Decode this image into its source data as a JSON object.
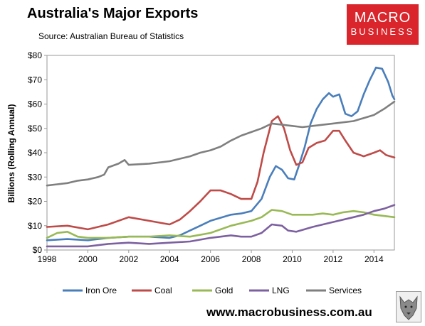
{
  "header": {
    "title": "Australia's Major Exports",
    "subtitle": "Source: Australian Bureau of Statistics"
  },
  "logo": {
    "line1": "MACRO",
    "line2": "BUSINESS",
    "color": "#d9252b"
  },
  "footer": {
    "url": "www.macrobusiness.com.au"
  },
  "chart_data": {
    "type": "line",
    "title": "Australia's Major Exports",
    "subtitle": "Source: Australian Bureau of Statistics",
    "ylabel": "Billions (Rolling Annual)",
    "xlabel": "",
    "xlim": [
      1998,
      2015
    ],
    "ylim": [
      0,
      80
    ],
    "y_ticks": [
      0,
      10,
      20,
      30,
      40,
      50,
      60,
      70,
      80
    ],
    "y_tick_labels": [
      "$0",
      "$10",
      "$20",
      "$30",
      "$40",
      "$50",
      "$60",
      "$70",
      "$80"
    ],
    "x_ticks": [
      1998,
      2000,
      2002,
      2004,
      2006,
      2008,
      2010,
      2012,
      2014
    ],
    "x_tick_labels": [
      "1998",
      "2000",
      "2002",
      "2004",
      "2006",
      "2008",
      "2010",
      "2012",
      "2014"
    ],
    "grid": false,
    "legend_position": "bottom",
    "series": [
      {
        "name": "Iron Ore",
        "color": "#4a7ebb",
        "x": [
          1998,
          1999,
          2000,
          2001,
          2002,
          2003,
          2004,
          2004.5,
          2005,
          2005.5,
          2006,
          2007,
          2007.5,
          2008,
          2008.5,
          2008.9,
          2009.2,
          2009.5,
          2009.8,
          2010.1,
          2010.3,
          2010.6,
          2010.9,
          2011.2,
          2011.5,
          2011.8,
          2012.0,
          2012.3,
          2012.6,
          2012.9,
          2013.2,
          2013.5,
          2013.8,
          2014.1,
          2014.4,
          2014.7,
          2014.9,
          2015
        ],
        "y": [
          4,
          4.5,
          4,
          5,
          5.5,
          5.5,
          5,
          6,
          8,
          10,
          12,
          14.5,
          15,
          16,
          21,
          30,
          34.5,
          33,
          29.5,
          29,
          34,
          42,
          52,
          58,
          62,
          64.5,
          63,
          64,
          56,
          55,
          57,
          64,
          70,
          75,
          74.5,
          69,
          63.5,
          62
        ]
      },
      {
        "name": "Coal",
        "color": "#be4b48",
        "x": [
          1998,
          1999,
          2000,
          2001,
          2002,
          2003,
          2004,
          2004.5,
          2005,
          2005.5,
          2006,
          2006.5,
          2007,
          2007.5,
          2008,
          2008.3,
          2008.6,
          2009.0,
          2009.3,
          2009.6,
          2009.9,
          2010.2,
          2010.5,
          2010.8,
          2011.2,
          2011.6,
          2012.0,
          2012.3,
          2012.6,
          2013.0,
          2013.5,
          2014.0,
          2014.3,
          2014.6,
          2015
        ],
        "y": [
          9.5,
          10,
          8.5,
          10.5,
          13.5,
          12,
          10.5,
          12.5,
          16,
          20,
          24.5,
          24.5,
          23,
          21,
          21,
          28,
          40,
          53,
          55,
          50,
          41,
          35,
          36,
          42,
          44,
          45,
          49,
          49,
          45,
          40,
          38.5,
          40,
          41,
          39,
          38
        ]
      },
      {
        "name": "Gold",
        "color": "#98b954",
        "x": [
          1998,
          1998.5,
          1999,
          1999.5,
          2000,
          2001,
          2002,
          2003,
          2004,
          2005,
          2006,
          2007,
          2008,
          2008.5,
          2009.0,
          2009.5,
          2010.0,
          2010.5,
          2011,
          2011.5,
          2012,
          2012.5,
          2013,
          2013.5,
          2014,
          2014.5,
          2015
        ],
        "y": [
          5,
          7,
          7.5,
          5.5,
          5,
          5,
          5.5,
          5.5,
          6,
          5.5,
          7,
          10,
          12,
          13.5,
          16.5,
          16,
          14.5,
          14.5,
          14.5,
          15,
          14.5,
          15.5,
          16,
          15.5,
          14.5,
          14,
          13.5
        ]
      },
      {
        "name": "LNG",
        "color": "#7d60a0",
        "x": [
          1998,
          1999,
          2000,
          2001,
          2002,
          2003,
          2004,
          2005,
          2006,
          2006.5,
          2007,
          2007.5,
          2008,
          2008.5,
          2009.0,
          2009.5,
          2009.8,
          2010.2,
          2011,
          2012,
          2013,
          2013.5,
          2014,
          2014.5,
          2015
        ],
        "y": [
          1.5,
          1.5,
          1.5,
          2.5,
          3,
          2.5,
          3,
          3.5,
          5,
          5.5,
          6,
          5.5,
          5.5,
          7,
          10.5,
          10,
          8,
          7.5,
          9.5,
          11.5,
          13.5,
          14.5,
          16,
          17,
          18.5
        ]
      },
      {
        "name": "Services",
        "color": "#7f7f7f",
        "x": [
          1998,
          1998.5,
          1999,
          1999.5,
          2000,
          2000.5,
          2000.8,
          2001,
          2001.5,
          2001.8,
          2002,
          2003,
          2004,
          2005,
          2005.5,
          2006,
          2006.5,
          2007,
          2007.5,
          2008,
          2008.5,
          2009.0,
          2009.5,
          2010.0,
          2010.5,
          2011,
          2012,
          2013,
          2014,
          2014.5,
          2015
        ],
        "y": [
          26.5,
          27,
          27.5,
          28.5,
          29,
          30,
          31,
          34,
          35.5,
          37,
          35,
          35.5,
          36.5,
          38.5,
          40,
          41,
          42.5,
          45,
          47,
          48.5,
          50,
          52,
          51.5,
          51,
          50.5,
          51,
          52,
          53,
          55.5,
          58,
          61
        ]
      }
    ]
  }
}
